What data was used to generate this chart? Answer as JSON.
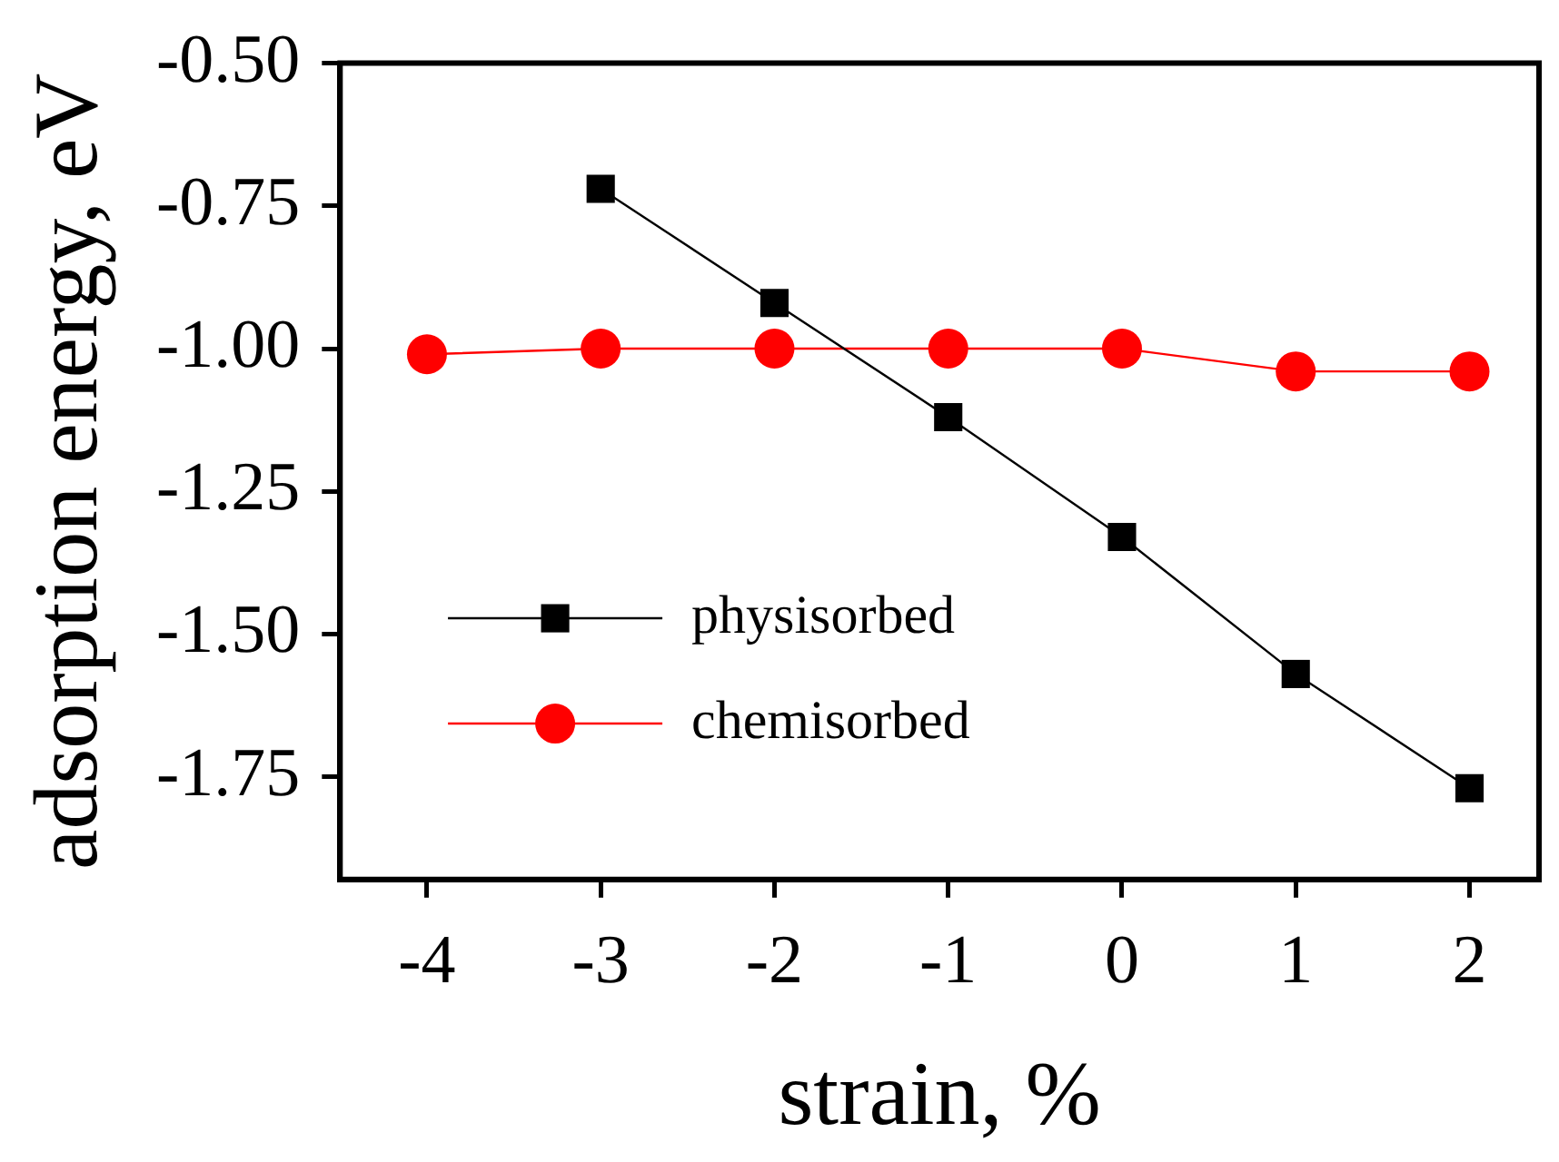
{
  "chart_data": {
    "type": "line",
    "xlabel": "strain, %",
    "ylabel": "adsorption energy, eV",
    "x": [
      -4,
      -3,
      -2,
      -1,
      0,
      1,
      2
    ],
    "series": [
      {
        "name": "physisorbed",
        "color": "#000000",
        "marker": "square",
        "values": [
          null,
          -0.72,
          -0.92,
          -1.12,
          -1.33,
          -1.57,
          -1.77
        ]
      },
      {
        "name": "chemisorbed",
        "color": "#ff0000",
        "marker": "circle",
        "values": [
          -1.01,
          -1.0,
          -1.0,
          -1.0,
          -1.0,
          -1.04,
          -1.04
        ]
      }
    ],
    "xlim": [
      -4.5,
      2.4
    ],
    "xticks": [
      -4,
      -3,
      -2,
      -1,
      0,
      1,
      2
    ],
    "ylim": [
      -1.93,
      -0.5
    ],
    "yticks": [
      {
        "value": -1.75,
        "label": "-1.75"
      },
      {
        "value": -1.5,
        "label": "-1.50"
      },
      {
        "value": -1.25,
        "label": "-1.25"
      },
      {
        "value": -1,
        "label": "-1.00"
      },
      {
        "value": -0.75,
        "label": "-0.75"
      },
      {
        "value": -0.5,
        "label": "-0.50"
      }
    ],
    "grid": false,
    "legend": "left"
  }
}
